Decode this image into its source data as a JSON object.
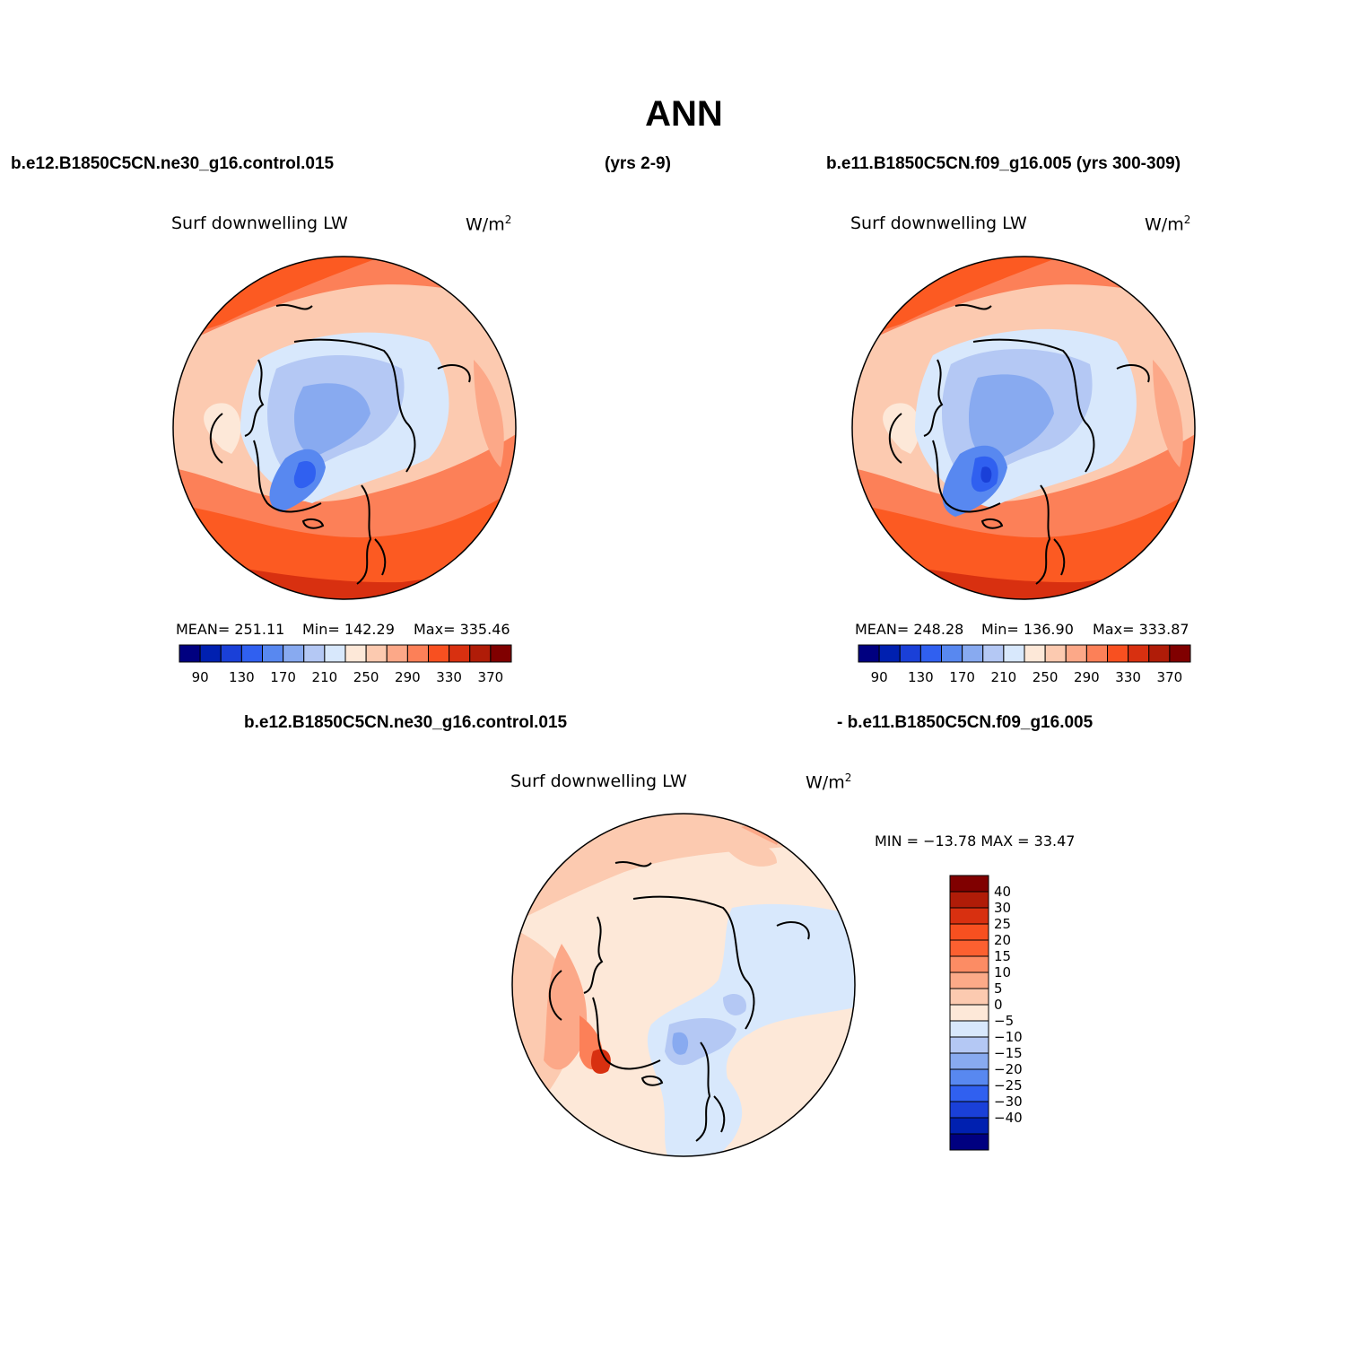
{
  "title": "ANN",
  "header": {
    "case_left": "b.e12.B1850C5CN.ne30_g16.control.015",
    "years_left": "(yrs 2-9)",
    "case_right": "b.e11.B1850C5CN.f09_g16.005 (yrs 300-309)",
    "diff_left": "b.e12.B1850C5CN.ne30_g16.control.015",
    "diff_right": "- b.e11.B1850C5CN.f09_g16.005"
  },
  "panels": [
    {
      "variable": "Surf downwelling LW",
      "units": "W/m",
      "units_sup": "2",
      "mean_text": "MEAN= 251.11",
      "min_text": "Min= 142.29",
      "max_text": "Max= 335.46"
    },
    {
      "variable": "Surf downwelling LW",
      "units": "W/m",
      "units_sup": "2",
      "mean_text": "MEAN= 248.28",
      "min_text": "Min= 136.90",
      "max_text": "Max= 333.87"
    }
  ],
  "diff_panel": {
    "variable": "Surf downwelling LW",
    "units": "W/m",
    "units_sup": "2",
    "minmax_text": "MIN = −13.78 MAX =  33.47"
  },
  "colorbar_abs": {
    "colors": [
      "#000080",
      "#0020b0",
      "#1a40d8",
      "#3060f0",
      "#5888f0",
      "#88aaf0",
      "#b4c8f4",
      "#d8e8fc",
      "#fde8d8",
      "#fccab0",
      "#fca888",
      "#fc8058",
      "#f85020",
      "#d83010",
      "#b01c08",
      "#800000"
    ],
    "tick_labels": [
      "90",
      "130",
      "170",
      "210",
      "250",
      "290",
      "330",
      "370"
    ]
  },
  "colorbar_diff": {
    "colors_top_to_bottom": [
      "#800000",
      "#b01c08",
      "#d83010",
      "#f85020",
      "#fc6030",
      "#fc8c64",
      "#fcaa88",
      "#fccab0",
      "#fde8d8",
      "#d8e8fc",
      "#b4c8f4",
      "#88aaf0",
      "#5888f0",
      "#3060f0",
      "#1a40d8",
      "#0020b0",
      "#000080"
    ],
    "tick_labels": [
      "40",
      "30",
      "25",
      "20",
      "15",
      "10",
      "5",
      "0",
      "−5",
      "−10",
      "−15",
      "−20",
      "−25",
      "−30",
      "−40"
    ]
  },
  "colors": {
    "ocean_warm": "#fc5a22",
    "land_cool": "#b4c8f4",
    "coastline": "#000000"
  }
}
